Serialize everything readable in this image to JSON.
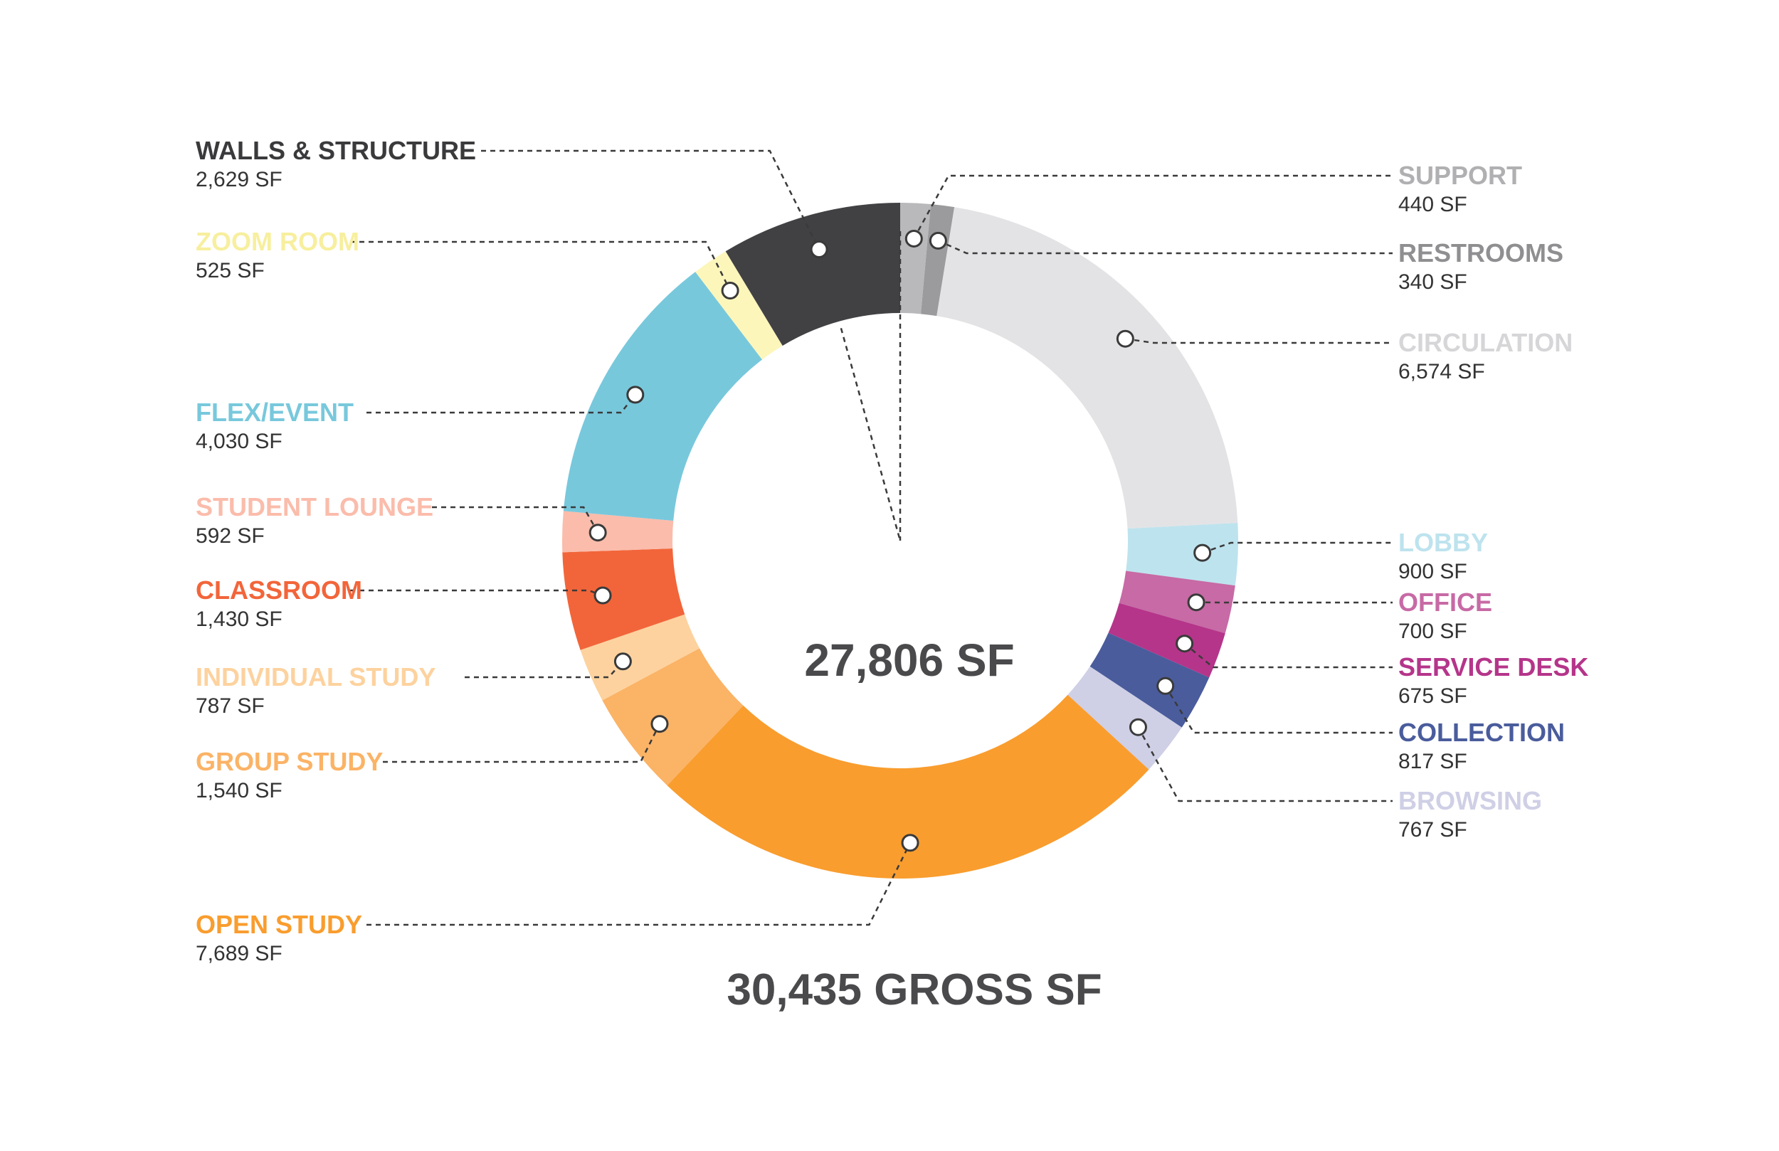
{
  "chart_data": {
    "type": "pie",
    "variant": "donut",
    "title": "",
    "center_label": "27,806 SF",
    "total_label": "30,435 GROSS SF",
    "slices": [
      {
        "name": "SUPPORT",
        "value_label": "440 SF",
        "value": 440,
        "color": "#b9b8ba",
        "side": "right"
      },
      {
        "name": "RESTROOMS",
        "value_label": "340 SF",
        "value": 340,
        "color": "#9b9a9c",
        "side": "right"
      },
      {
        "name": "CIRCULATION",
        "value_label": "6,574 SF",
        "value": 6574,
        "color": "#e3e3e5",
        "side": "right"
      },
      {
        "name": "LOBBY",
        "value_label": "900 SF",
        "value": 900,
        "color": "#bde3ee",
        "side": "right"
      },
      {
        "name": "OFFICE",
        "value_label": "700 SF",
        "value": 700,
        "color": "#c76aa5",
        "side": "right"
      },
      {
        "name": "SERVICE DESK",
        "value_label": "675 SF",
        "value": 675,
        "color": "#b5358a",
        "side": "right"
      },
      {
        "name": "COLLECTION",
        "value_label": "817 SF",
        "value": 817,
        "color": "#4a5c9c",
        "side": "right"
      },
      {
        "name": "BROWSING",
        "value_label": "767 SF",
        "value": 767,
        "color": "#cfcfe6",
        "side": "right"
      },
      {
        "name": "OPEN STUDY",
        "value_label": "7,689 SF",
        "value": 7689,
        "color": "#f99d2e",
        "side": "left"
      },
      {
        "name": "GROUP STUDY",
        "value_label": "1,540 SF",
        "value": 1540,
        "color": "#fbb366",
        "side": "left"
      },
      {
        "name": "INDIVIDUAL STUDY",
        "value_label": "787 SF",
        "value": 787,
        "color": "#fdd29e",
        "side": "left"
      },
      {
        "name": "CLASSROOM",
        "value_label": "1,430 SF",
        "value": 1430,
        "color": "#f2653a",
        "side": "left"
      },
      {
        "name": "STUDENT LOUNGE",
        "value_label": "592 SF",
        "value": 592,
        "color": "#fbbcab",
        "side": "left"
      },
      {
        "name": "FLEX/EVENT",
        "value_label": "4,030 SF",
        "value": 4030,
        "color": "#78c8dc",
        "side": "left"
      },
      {
        "name": "ZOOM ROOM",
        "value_label": "525 SF",
        "value": 525,
        "color": "#fdf6bb",
        "side": "left"
      },
      {
        "name": "WALLS & STRUCTURE",
        "value_label": "2,629 SF",
        "value": 2629,
        "color": "#414144",
        "side": "left"
      }
    ]
  }
}
